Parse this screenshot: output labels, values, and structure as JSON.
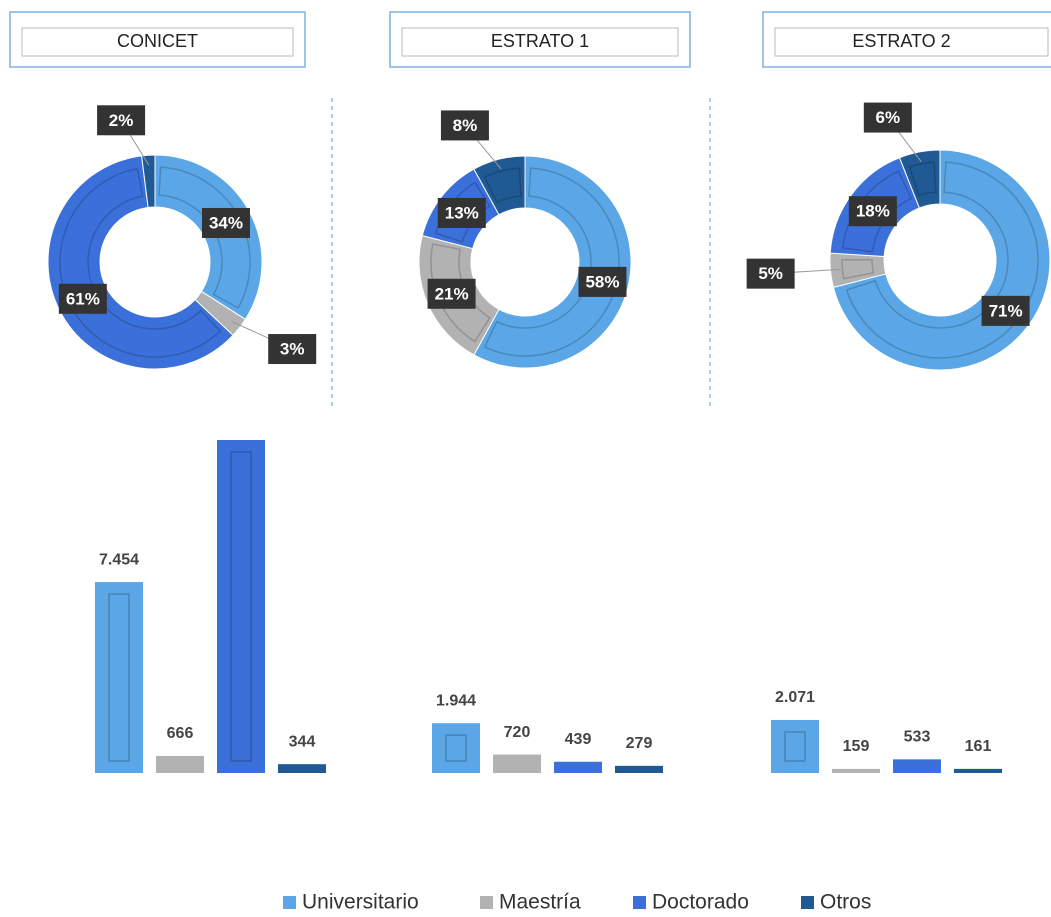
{
  "chart_data": {
    "categories": [
      "Universitario",
      "Maestría",
      "Doctorado",
      "Otros"
    ],
    "colors": [
      "#5aa6e6",
      "#b2b2b2",
      "#3b6fd9",
      "#1f5a94"
    ],
    "legend": "bottom",
    "ylim": [
      0,
      13000
    ],
    "charts": [
      {
        "type": "pie",
        "title": "CONICET",
        "values": [
          34,
          3,
          61,
          2
        ],
        "value_labels": [
          "34%",
          "3%",
          "61%",
          "2%"
        ]
      },
      {
        "type": "pie",
        "title": "ESTRATO 1",
        "values": [
          58,
          21,
          13,
          8
        ],
        "value_labels": [
          "58%",
          "21%",
          "13%",
          "8%"
        ]
      },
      {
        "type": "pie",
        "title": "ESTRATO 2",
        "values": [
          71,
          5,
          18,
          6
        ],
        "value_labels": [
          "71%",
          "5%",
          "18%",
          "6%"
        ]
      },
      {
        "type": "bar",
        "values": [
          7454,
          666,
          13000,
          344
        ],
        "value_labels": [
          "7.454",
          "666",
          null,
          "344"
        ]
      },
      {
        "type": "bar",
        "values": [
          1944,
          720,
          439,
          279
        ],
        "value_labels": [
          "1.944",
          "720",
          "439",
          "279"
        ]
      },
      {
        "type": "bar",
        "values": [
          2071,
          159,
          533,
          161
        ],
        "value_labels": [
          "2.071",
          "159",
          "533",
          "161"
        ]
      }
    ]
  }
}
